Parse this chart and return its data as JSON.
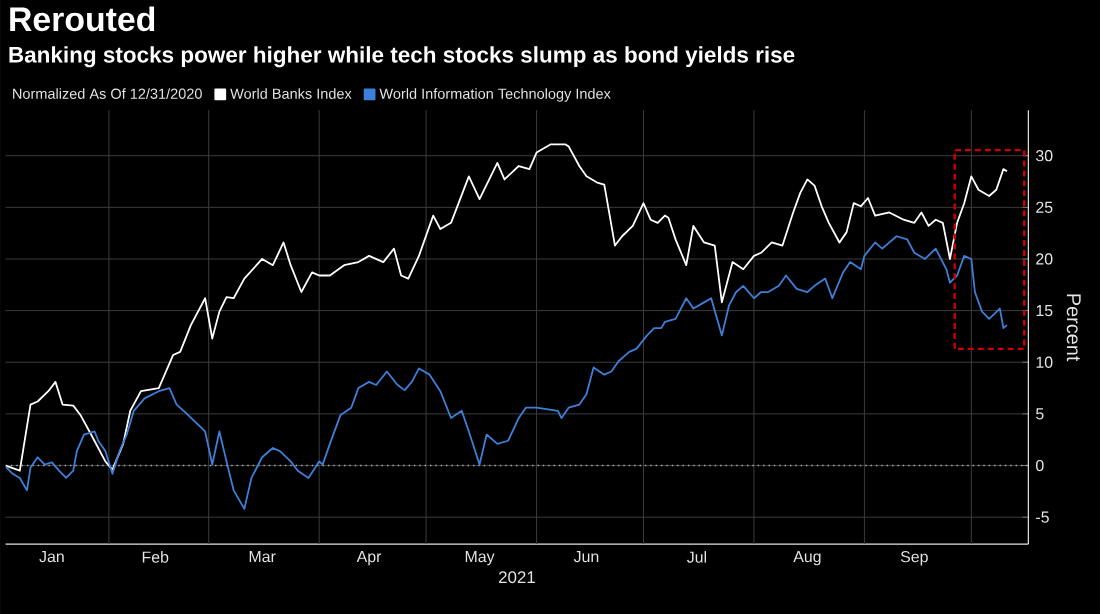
{
  "chart_data": {
    "type": "line",
    "title": "Rerouted",
    "subtitle": "Banking stocks power higher while tech stocks slump as bond yields rise",
    "legend_title": "Normalized As Of 12/31/2020",
    "xlabel": "2021",
    "ylabel": "Percent",
    "xlim": [
      "2021-01-03",
      "2021-10-17"
    ],
    "xticks": [
      {
        "value": "2021-01-16",
        "label": "Jan"
      },
      {
        "value": "2021-02-14",
        "label": "Feb"
      },
      {
        "value": "2021-03-16",
        "label": "Mar"
      },
      {
        "value": "2021-04-15",
        "label": "Apr"
      },
      {
        "value": "2021-05-16",
        "label": "May"
      },
      {
        "value": "2021-06-15",
        "label": "Jun"
      },
      {
        "value": "2021-07-16",
        "label": "Jul"
      },
      {
        "value": "2021-08-16",
        "label": "Aug"
      },
      {
        "value": "2021-09-15",
        "label": "Sep"
      },
      {
        "value": "2021-02-01",
        "label": null
      },
      {
        "value": "2021-03-01",
        "label": null
      },
      {
        "value": "2021-04-01",
        "label": null
      },
      {
        "value": "2021-05-01",
        "label": null
      },
      {
        "value": "2021-06-01",
        "label": null
      },
      {
        "value": "2021-07-01",
        "label": null
      },
      {
        "value": "2021-08-01",
        "label": null
      },
      {
        "value": "2021-09-01",
        "label": null
      },
      {
        "value": "2021-10-01",
        "label": null
      }
    ],
    "ylim": [
      -7.6,
      34.4
    ],
    "yticks": [
      -5,
      0,
      5,
      10,
      15,
      20,
      25,
      30
    ],
    "grid": true,
    "legend": "top left",
    "ref_lines": [
      {
        "axis": "y",
        "value": 0,
        "color": "#b0b0b0",
        "line_style": "dotted"
      }
    ],
    "series": [
      {
        "name": "World Banks Index",
        "color": "#ffffff",
        "x": [
          "2021-01-03",
          "2021-01-07",
          "2021-01-10",
          "2021-01-12",
          "2021-01-15",
          "2021-01-17",
          "2021-01-19",
          "2021-01-22",
          "2021-01-24",
          "2021-01-27",
          "2021-01-31",
          "2021-02-02",
          "2021-02-05",
          "2021-02-07",
          "2021-02-10",
          "2021-02-15",
          "2021-02-19",
          "2021-02-21",
          "2021-02-24",
          "2021-02-28",
          "2021-03-02",
          "2021-03-04",
          "2021-03-06",
          "2021-03-08",
          "2021-03-11",
          "2021-03-16",
          "2021-03-19",
          "2021-03-22",
          "2021-03-24",
          "2021-03-27",
          "2021-03-30",
          "2021-04-01",
          "2021-04-04",
          "2021-04-08",
          "2021-04-12",
          "2021-04-15",
          "2021-04-19",
          "2021-04-22",
          "2021-04-24",
          "2021-04-26",
          "2021-04-29",
          "2021-05-03",
          "2021-05-05",
          "2021-05-08",
          "2021-05-13",
          "2021-05-16",
          "2021-05-21",
          "2021-05-23",
          "2021-05-27",
          "2021-05-30",
          "2021-06-01",
          "2021-06-05",
          "2021-06-09",
          "2021-06-10",
          "2021-06-13",
          "2021-06-15",
          "2021-06-18",
          "2021-06-20",
          "2021-06-23",
          "2021-06-25",
          "2021-06-28",
          "2021-07-01",
          "2021-07-03",
          "2021-07-05",
          "2021-07-07",
          "2021-07-08",
          "2021-07-10",
          "2021-07-13",
          "2021-07-15",
          "2021-07-18",
          "2021-07-21",
          "2021-07-23",
          "2021-07-26",
          "2021-07-29",
          "2021-08-01",
          "2021-08-03",
          "2021-08-06",
          "2021-08-09",
          "2021-08-12",
          "2021-08-14",
          "2021-08-16",
          "2021-08-18",
          "2021-08-20",
          "2021-08-22",
          "2021-08-25",
          "2021-08-27",
          "2021-08-29",
          "2021-08-31",
          "2021-09-02",
          "2021-09-04",
          "2021-09-08",
          "2021-09-12",
          "2021-09-15",
          "2021-09-17",
          "2021-09-19",
          "2021-09-21",
          "2021-09-23",
          "2021-09-25",
          "2021-09-27",
          "2021-09-29",
          "2021-10-01",
          "2021-10-03",
          "2021-10-06",
          "2021-10-08",
          "2021-10-10",
          "2021-10-11"
        ],
        "values": [
          0,
          -0.5,
          5.9,
          6.2,
          7.2,
          8.1,
          5.9,
          5.8,
          4.9,
          3.0,
          0.4,
          -0.4,
          2.1,
          5.3,
          7.2,
          7.5,
          10.7,
          11.0,
          13.6,
          16.2,
          12.3,
          14.9,
          16.3,
          16.2,
          18.1,
          20.0,
          19.4,
          21.6,
          19.4,
          16.8,
          18.7,
          18.4,
          18.4,
          19.4,
          19.7,
          20.3,
          19.7,
          21.0,
          18.4,
          18.1,
          20.3,
          24.2,
          22.9,
          23.5,
          28.0,
          25.8,
          29.3,
          27.7,
          29.0,
          28.7,
          30.3,
          31.1,
          31.1,
          30.9,
          29.0,
          28.0,
          27.4,
          27.2,
          21.3,
          22.2,
          23.2,
          25.4,
          23.8,
          23.5,
          24.2,
          24.0,
          21.9,
          19.4,
          23.2,
          21.6,
          21.3,
          15.8,
          19.7,
          19.0,
          20.3,
          20.6,
          21.6,
          21.3,
          24.5,
          26.4,
          27.7,
          27.1,
          25.1,
          23.5,
          21.6,
          22.6,
          25.4,
          25.1,
          25.9,
          24.2,
          24.5,
          23.8,
          23.5,
          24.5,
          23.2,
          23.8,
          23.5,
          20.0,
          23.5,
          25.4,
          28.0,
          26.7,
          26.1,
          26.7,
          28.7,
          28.5
        ]
      },
      {
        "name": "World Information Technology Index",
        "color": "#3d7fd9",
        "x": [
          "2021-01-03",
          "2021-01-05",
          "2021-01-07",
          "2021-01-09",
          "2021-01-10",
          "2021-01-12",
          "2021-01-14",
          "2021-01-16",
          "2021-01-18",
          "2021-01-20",
          "2021-01-22",
          "2021-01-23",
          "2021-01-25",
          "2021-01-28",
          "2021-01-29",
          "2021-01-31",
          "2021-02-02",
          "2021-02-04",
          "2021-02-06",
          "2021-02-08",
          "2021-02-11",
          "2021-02-15",
          "2021-02-18",
          "2021-02-20",
          "2021-02-22",
          "2021-02-25",
          "2021-02-28",
          "2021-03-02",
          "2021-03-04",
          "2021-03-06",
          "2021-03-08",
          "2021-03-11",
          "2021-03-13",
          "2021-03-16",
          "2021-03-19",
          "2021-03-21",
          "2021-03-24",
          "2021-03-26",
          "2021-03-29",
          "2021-04-01",
          "2021-04-02",
          "2021-04-04",
          "2021-04-07",
          "2021-04-10",
          "2021-04-12",
          "2021-04-15",
          "2021-04-17",
          "2021-04-20",
          "2021-04-23",
          "2021-04-25",
          "2021-04-27",
          "2021-04-29",
          "2021-05-02",
          "2021-05-05",
          "2021-05-08",
          "2021-05-11",
          "2021-05-13",
          "2021-05-16",
          "2021-05-18",
          "2021-05-21",
          "2021-05-24",
          "2021-05-27",
          "2021-05-29",
          "2021-06-01",
          "2021-06-07",
          "2021-06-08",
          "2021-06-10",
          "2021-06-13",
          "2021-06-15",
          "2021-06-17",
          "2021-06-20",
          "2021-06-22",
          "2021-06-24",
          "2021-06-27",
          "2021-06-29",
          "2021-07-02",
          "2021-07-04",
          "2021-07-06",
          "2021-07-07",
          "2021-07-10",
          "2021-07-13",
          "2021-07-15",
          "2021-07-18",
          "2021-07-20",
          "2021-07-23",
          "2021-07-25",
          "2021-07-27",
          "2021-07-29",
          "2021-08-01",
          "2021-08-03",
          "2021-08-05",
          "2021-08-08",
          "2021-08-10",
          "2021-08-13",
          "2021-08-16",
          "2021-08-18",
          "2021-08-21",
          "2021-08-23",
          "2021-08-26",
          "2021-08-28",
          "2021-08-31",
          "2021-09-01",
          "2021-09-04",
          "2021-09-06",
          "2021-09-10",
          "2021-09-13",
          "2021-09-15",
          "2021-09-18",
          "2021-09-21",
          "2021-09-24",
          "2021-09-25",
          "2021-09-27",
          "2021-09-29",
          "2021-10-01",
          "2021-10-02",
          "2021-10-04",
          "2021-10-06",
          "2021-10-09",
          "2021-10-10",
          "2021-10-11"
        ],
        "values": [
          -0.1,
          -0.8,
          -1.2,
          -2.4,
          -0.2,
          0.8,
          0.1,
          0.3,
          -0.5,
          -1.2,
          -0.5,
          1.4,
          3.0,
          3.3,
          2.4,
          1.4,
          -0.8,
          1.4,
          3.0,
          5.3,
          6.5,
          7.2,
          7.5,
          5.9,
          5.3,
          4.3,
          3.3,
          0.1,
          3.3,
          0.4,
          -2.4,
          -4.2,
          -1.2,
          0.8,
          1.7,
          1.4,
          0.4,
          -0.5,
          -1.2,
          0.4,
          0.1,
          2.1,
          4.9,
          5.6,
          7.5,
          8.1,
          7.8,
          9.1,
          7.8,
          7.3,
          8.1,
          9.4,
          8.8,
          7.2,
          4.6,
          5.3,
          3.3,
          0.1,
          3.0,
          2.1,
          2.4,
          4.6,
          5.6,
          5.6,
          5.3,
          4.6,
          5.6,
          5.9,
          6.9,
          9.5,
          8.8,
          9.1,
          10.1,
          11.0,
          11.3,
          12.6,
          13.3,
          13.3,
          13.9,
          14.2,
          16.2,
          15.2,
          15.8,
          16.2,
          12.6,
          15.5,
          16.8,
          17.4,
          16.2,
          16.8,
          16.8,
          17.4,
          18.4,
          17.1,
          16.8,
          17.4,
          18.1,
          16.2,
          18.7,
          19.7,
          19.0,
          20.3,
          21.6,
          21.0,
          22.2,
          21.9,
          20.6,
          20.0,
          21.0,
          19.0,
          17.7,
          18.4,
          20.3,
          20.0,
          16.8,
          14.9,
          14.2,
          15.2,
          13.3,
          13.6
        ]
      }
    ]
  }
}
